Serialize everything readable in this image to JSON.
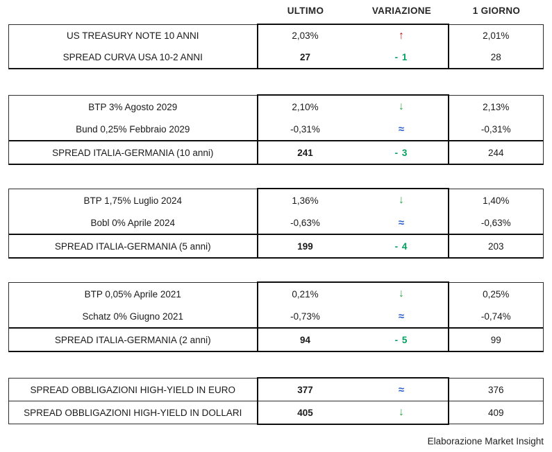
{
  "columns": {
    "ultimo": "ULTIMO",
    "variazione": "VARIAZIONE",
    "giorno": "1 GIORNO"
  },
  "colors": {
    "red": "#c01414",
    "arrow_green": "#2ea64c",
    "green": "#00a160",
    "blue": "#2b5fce"
  },
  "variation_glyphs": {
    "up": "↑",
    "down": "↓",
    "approx": "≈"
  },
  "blocks": [
    {
      "rows": [
        {
          "label": "US TREASURY NOTE 10 ANNI",
          "ultimo": "2,03%",
          "ultimo_bold": false,
          "var_type": "up",
          "var_text": "↑",
          "giorno": "2,01%",
          "spread": false
        },
        {
          "label": "SPREAD CURVA USA 10-2 ANNI",
          "ultimo": "27",
          "ultimo_bold": true,
          "var_type": "minus",
          "var_text": "- 1",
          "giorno": "28",
          "spread": false
        }
      ]
    },
    {
      "rows": [
        {
          "label": "BTP 3% Agosto 2029",
          "ultimo": "2,10%",
          "ultimo_bold": false,
          "var_type": "down",
          "var_text": "↓",
          "giorno": "2,13%",
          "spread": false
        },
        {
          "label": "Bund 0,25% Febbraio 2029",
          "ultimo": "-0,31%",
          "ultimo_bold": false,
          "var_type": "approx",
          "var_text": "≈",
          "giorno": "-0,31%",
          "spread": false
        },
        {
          "label": "SPREAD ITALIA-GERMANIA (10 anni)",
          "ultimo": "241",
          "ultimo_bold": true,
          "var_type": "minus",
          "var_text": "- 3",
          "giorno": "244",
          "spread": true
        }
      ]
    },
    {
      "rows": [
        {
          "label": "BTP 1,75% Luglio 2024",
          "ultimo": "1,36%",
          "ultimo_bold": false,
          "var_type": "down",
          "var_text": "↓",
          "giorno": "1,40%",
          "spread": false
        },
        {
          "label": "Bobl 0% Aprile 2024",
          "ultimo": "-0,63%",
          "ultimo_bold": false,
          "var_type": "approx",
          "var_text": "≈",
          "giorno": "-0,63%",
          "spread": false
        },
        {
          "label": "SPREAD ITALIA-GERMANIA (5 anni)",
          "ultimo": "199",
          "ultimo_bold": true,
          "var_type": "minus",
          "var_text": "- 4",
          "giorno": "203",
          "spread": true
        }
      ]
    },
    {
      "rows": [
        {
          "label": "BTP 0,05% Aprile 2021",
          "ultimo": "0,21%",
          "ultimo_bold": false,
          "var_type": "down",
          "var_text": "↓",
          "giorno": "0,25%",
          "spread": false
        },
        {
          "label": "Schatz 0% Giugno 2021",
          "ultimo": "-0,73%",
          "ultimo_bold": false,
          "var_type": "approx",
          "var_text": "≈",
          "giorno": "-0,74%",
          "spread": false
        },
        {
          "label": "SPREAD ITALIA-GERMANIA (2 anni)",
          "ultimo": "94",
          "ultimo_bold": true,
          "var_type": "minus",
          "var_text": "- 5",
          "giorno": "99",
          "spread": true
        }
      ]
    },
    {
      "rows": [
        {
          "label": "SPREAD OBBLIGAZIONI HIGH-YIELD IN EURO",
          "ultimo": "377",
          "ultimo_bold": true,
          "var_type": "approx",
          "var_text": "≈",
          "giorno": "376",
          "spread": false
        },
        {
          "label": "SPREAD OBBLIGAZIONI HIGH-YIELD IN DOLLARI",
          "ultimo": "405",
          "ultimo_bold": true,
          "var_type": "down",
          "var_text": "↓",
          "giorno": "409",
          "spread": false
        }
      ]
    }
  ],
  "footer": "Elaborazione Market Insight"
}
